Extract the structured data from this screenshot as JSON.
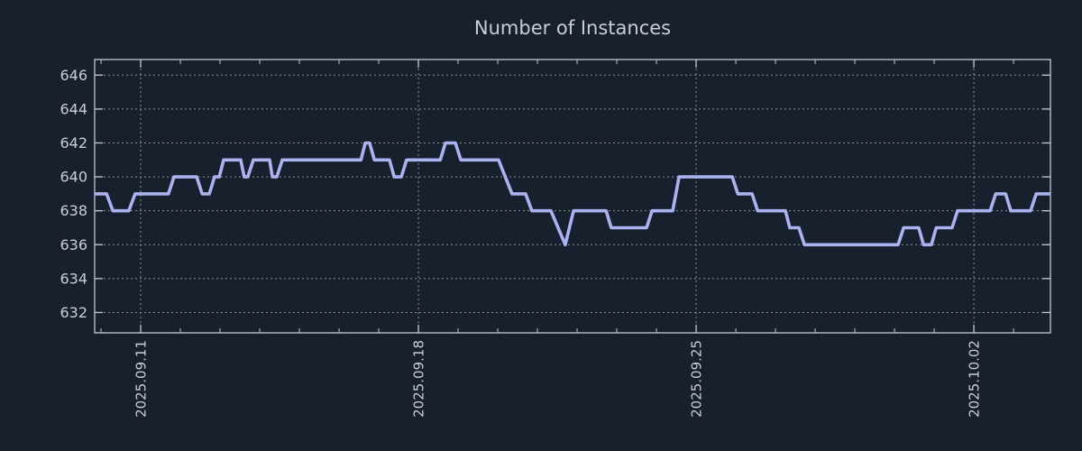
{
  "colors": {
    "background": "#18202d",
    "line": "#aab2f0",
    "grid": "#8a9097",
    "axis": "#c6cacf",
    "text": "#c9ced4"
  },
  "chart_data": {
    "type": "line",
    "title": "Number of Instances",
    "grid": true,
    "legend_position": "none",
    "x_axis": {
      "unit": "days since 2025-09-09 00:00",
      "range": [
        0.84,
        24.93
      ],
      "major_ticks": [
        {
          "t": 2,
          "label": "2025.09.11"
        },
        {
          "t": 9,
          "label": "2025.09.18"
        },
        {
          "t": 16,
          "label": "2025.09.25"
        },
        {
          "t": 23,
          "label": "2025.10.02"
        }
      ],
      "minor_ticks": [
        1,
        3,
        4,
        5,
        6,
        7,
        8,
        10,
        11,
        12,
        13,
        14,
        15,
        17,
        18,
        19,
        20,
        21,
        22,
        24
      ],
      "label_rotation_deg": -90
    },
    "y_axis": {
      "range": [
        630.8,
        646.92
      ],
      "major_ticks": [
        632,
        634,
        636,
        638,
        640,
        642,
        644,
        646
      ]
    },
    "series": [
      {
        "name": "Number of Instances",
        "color": "#aab2f0",
        "points": [
          [
            0.84,
            639
          ],
          [
            1.14,
            639
          ],
          [
            1.3,
            638
          ],
          [
            1.7,
            638
          ],
          [
            1.86,
            639
          ],
          [
            2.7,
            639
          ],
          [
            2.84,
            640
          ],
          [
            3.41,
            640
          ],
          [
            3.55,
            639
          ],
          [
            3.73,
            639
          ],
          [
            3.86,
            640
          ],
          [
            3.98,
            640
          ],
          [
            4.09,
            641
          ],
          [
            4.52,
            641
          ],
          [
            4.61,
            640
          ],
          [
            4.7,
            640
          ],
          [
            4.84,
            641
          ],
          [
            5.25,
            641
          ],
          [
            5.32,
            640
          ],
          [
            5.43,
            640
          ],
          [
            5.57,
            641
          ],
          [
            7.55,
            641
          ],
          [
            7.66,
            642
          ],
          [
            7.77,
            642
          ],
          [
            7.89,
            641
          ],
          [
            8.27,
            641
          ],
          [
            8.39,
            640
          ],
          [
            8.57,
            640
          ],
          [
            8.7,
            641
          ],
          [
            9.55,
            641
          ],
          [
            9.68,
            642
          ],
          [
            9.93,
            642
          ],
          [
            10.07,
            641
          ],
          [
            11.02,
            641
          ],
          [
            11.36,
            639
          ],
          [
            11.7,
            639
          ],
          [
            11.86,
            638
          ],
          [
            12.34,
            638
          ],
          [
            12.7,
            636
          ],
          [
            12.91,
            638
          ],
          [
            13.73,
            638
          ],
          [
            13.86,
            637
          ],
          [
            14.75,
            637
          ],
          [
            14.89,
            638
          ],
          [
            15.41,
            638
          ],
          [
            15.57,
            640
          ],
          [
            16.91,
            640
          ],
          [
            17.05,
            639
          ],
          [
            17.41,
            639
          ],
          [
            17.55,
            638
          ],
          [
            18.25,
            638
          ],
          [
            18.36,
            637
          ],
          [
            18.59,
            637
          ],
          [
            18.73,
            636
          ],
          [
            21.09,
            636
          ],
          [
            21.23,
            637
          ],
          [
            21.61,
            637
          ],
          [
            21.73,
            636
          ],
          [
            21.93,
            636
          ],
          [
            22.05,
            637
          ],
          [
            22.45,
            637
          ],
          [
            22.59,
            638
          ],
          [
            23.41,
            638
          ],
          [
            23.55,
            639
          ],
          [
            23.8,
            639
          ],
          [
            23.93,
            638
          ],
          [
            24.43,
            638
          ],
          [
            24.57,
            639
          ],
          [
            24.93,
            639
          ]
        ]
      }
    ]
  }
}
